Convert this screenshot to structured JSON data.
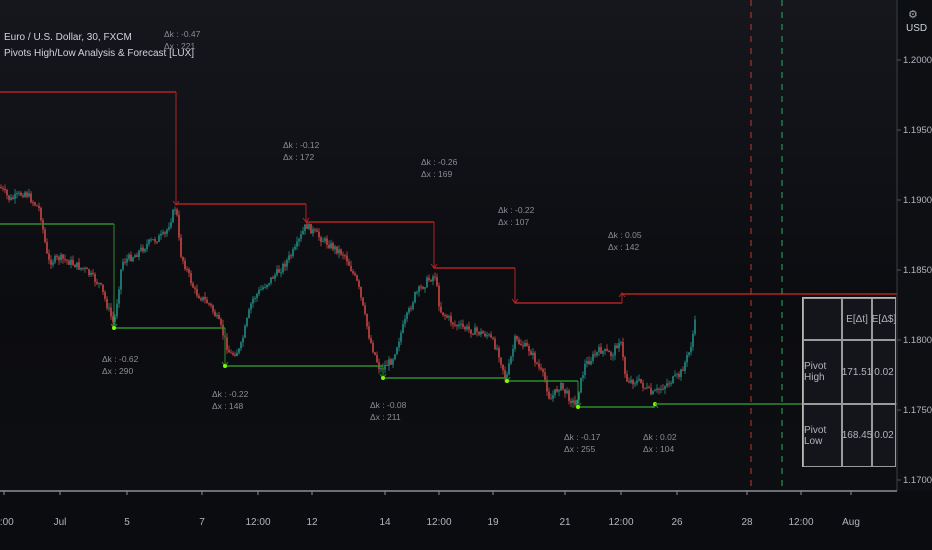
{
  "legend": {
    "symbol": "Euro / U.S. Dollar, 30, FXCM",
    "indicator": "Pivots High/Low Analysis & Forecast [LUX]"
  },
  "price_axis": {
    "currency": "USD",
    "ticks": [
      "1.20000",
      "1.19500",
      "1.19000",
      "1.18500",
      "1.18000",
      "1.17500",
      "1.17000"
    ]
  },
  "time_axis": {
    "ticks": [
      "2:00",
      "Jul",
      "5",
      "7",
      "12:00",
      "12",
      "14",
      "12:00",
      "19",
      "21",
      "12:00",
      "26",
      "28",
      "12:00",
      "Aug"
    ]
  },
  "annotations": [
    {
      "lines": [
        "Δk : -0.47",
        "Δx : 221"
      ]
    },
    {
      "lines": [
        "Δk : -0.12",
        "Δx : 172"
      ]
    },
    {
      "lines": [
        "Δk : -0.26",
        "Δx : 169"
      ]
    },
    {
      "lines": [
        "Δk : -0.22",
        "Δx : 107"
      ]
    },
    {
      "lines": [
        "Δk : 0.05",
        "Δx : 142"
      ]
    },
    {
      "lines": [
        "Δk : -0.62",
        "Δx : 290"
      ]
    },
    {
      "lines": [
        "Δk : -0.22",
        "Δx : 148"
      ]
    },
    {
      "lines": [
        "Δk : -0.08",
        "Δx : 211"
      ]
    },
    {
      "lines": [
        "Δk : -0.17",
        "Δx : 255"
      ]
    },
    {
      "lines": [
        "Δk : 0.02",
        "Δx : 104"
      ]
    }
  ],
  "stats_table": {
    "header": [
      "",
      "E[Δt]",
      "E[Δ$]"
    ],
    "rows": [
      {
        "label": "Pivot High",
        "dt": "171.51",
        "dp": "0.02"
      },
      {
        "label": "Pivot Low",
        "dt": "168.45",
        "dp": "0.02"
      }
    ]
  },
  "colors": {
    "pivot_high": "#b22222",
    "pivot_low": "#2e8b2e",
    "candle_up": "#26a69a",
    "candle_down": "#ef5350",
    "forecast_high": "#c0392b",
    "forecast_low": "#27ae60"
  }
}
